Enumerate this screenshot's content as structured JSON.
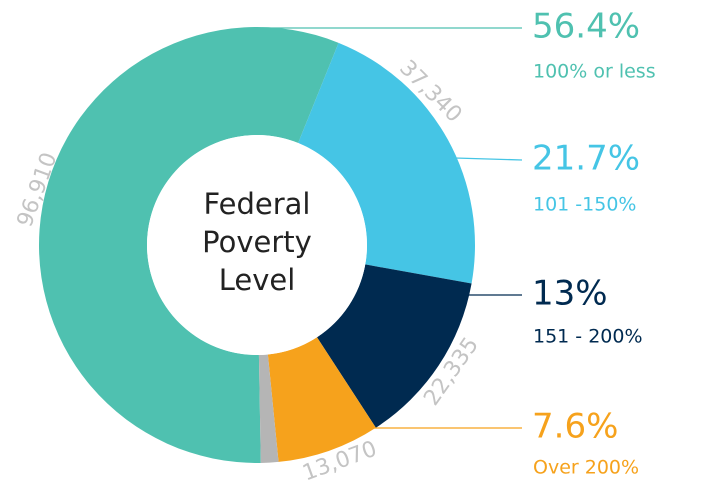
{
  "chart_data": {
    "type": "donut",
    "center_label": "Federal Poverty Level",
    "categories": [
      "100% or less",
      "101 -150%",
      "151 - 200%",
      "Over 200%",
      null
    ],
    "values": [
      96910,
      37340,
      22335,
      13070,
      2230
    ],
    "value_labels": [
      "96,910",
      "37,340",
      "22,335",
      "13,070",
      null
    ],
    "percentages": [
      56.4,
      21.7,
      13,
      7.6,
      null
    ],
    "percentage_labels": [
      "56.4%",
      "21.7%",
      "13%",
      "7.6%",
      null
    ],
    "colors": [
      "#4fc1b0",
      "#45c5e5",
      "#002a50",
      "#f6a21c",
      "#b5b5b5"
    ]
  }
}
